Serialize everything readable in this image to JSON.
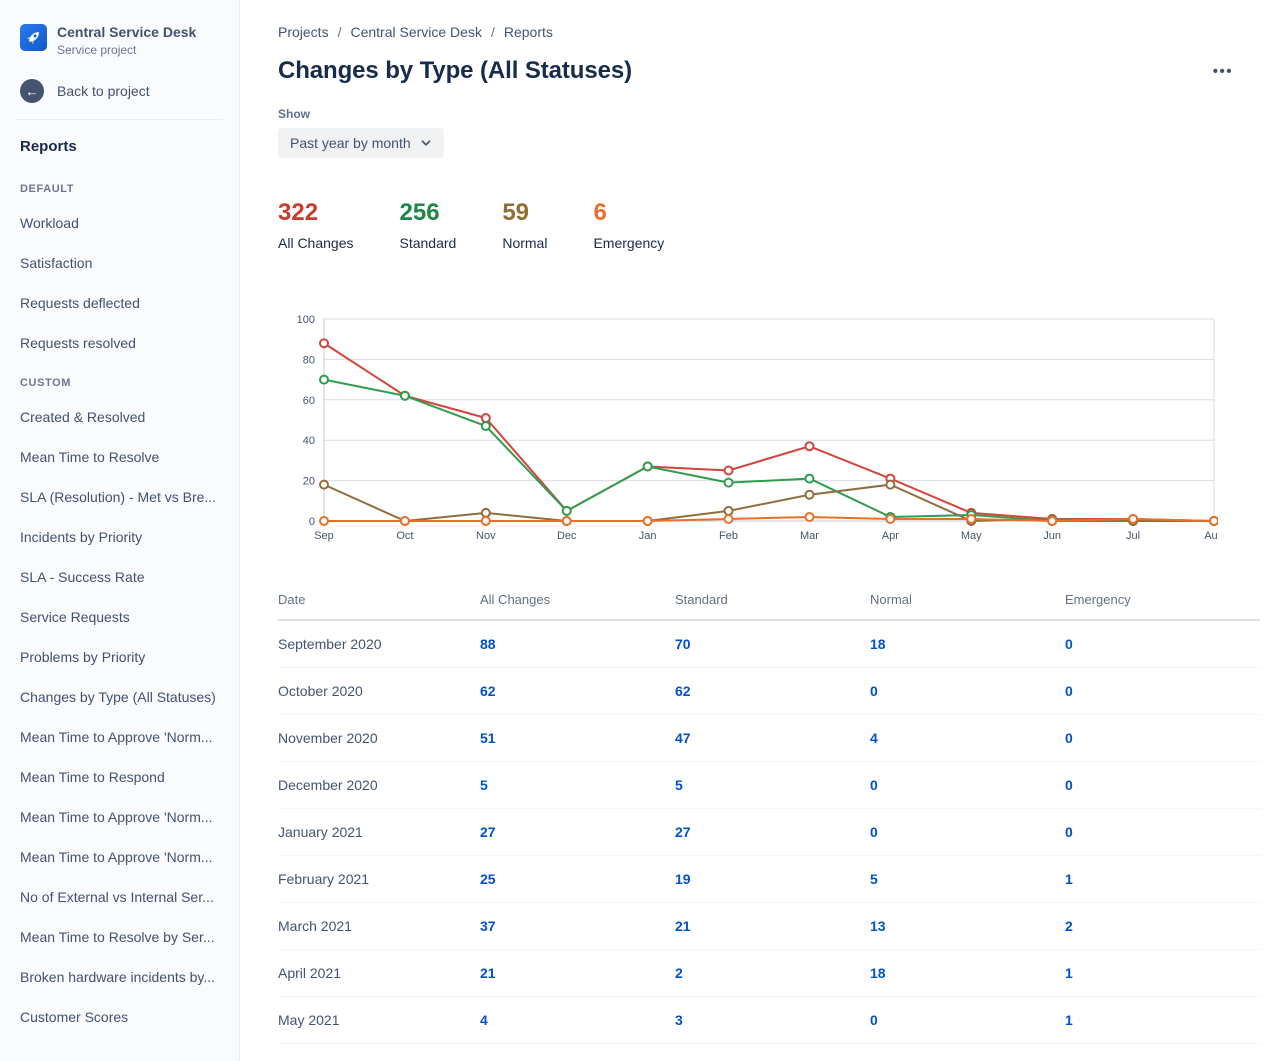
{
  "sidebar": {
    "project": {
      "name": "Central Service Desk",
      "type": "Service project"
    },
    "back_label": "Back to project",
    "reports_label": "Reports",
    "sections": [
      {
        "label": "DEFAULT",
        "items": [
          "Workload",
          "Satisfaction",
          "Requests deflected",
          "Requests resolved"
        ]
      },
      {
        "label": "CUSTOM",
        "items": [
          "Created & Resolved",
          "Mean Time to Resolve",
          "SLA (Resolution) - Met vs Bre...",
          "Incidents by Priority",
          "SLA - Success Rate",
          "Service Requests",
          "Problems by Priority",
          "Changes by Type (All Statuses)",
          "Mean Time to Approve 'Norm...",
          "Mean Time to Respond",
          "Mean Time to Approve 'Norm...",
          "Mean Time to Approve 'Norm...",
          "No of External vs Internal Ser...",
          "Mean Time to Resolve by Ser...",
          "Broken hardware incidents by...",
          "Customer Scores"
        ]
      }
    ]
  },
  "breadcrumb": [
    "Projects",
    "Central Service Desk",
    "Reports"
  ],
  "page": {
    "title": "Changes by Type (All Statuses)",
    "more_label": "•••"
  },
  "filter": {
    "label": "Show",
    "value": "Past year by month"
  },
  "stats": [
    {
      "value": "322",
      "label": "All Changes",
      "color": "#ca3b2b"
    },
    {
      "value": "256",
      "label": "Standard",
      "color": "#1e8746"
    },
    {
      "value": "59",
      "label": "Normal",
      "color": "#8d6e34"
    },
    {
      "value": "6",
      "label": "Emergency",
      "color": "#e8702a"
    }
  ],
  "chart_data": {
    "type": "line",
    "x": [
      "Sep",
      "Oct",
      "Nov",
      "Dec",
      "Jan",
      "Feb",
      "Mar",
      "Apr",
      "May",
      "Jun",
      "Jul",
      "Aug"
    ],
    "series": [
      {
        "name": "All Changes",
        "color": "#d5443c",
        "values": [
          88,
          62,
          51,
          5,
          27,
          25,
          37,
          21,
          4,
          1,
          1,
          0
        ]
      },
      {
        "name": "Standard",
        "color": "#2f9e4c",
        "values": [
          70,
          62,
          47,
          5,
          27,
          19,
          21,
          2,
          3,
          0,
          0,
          0
        ]
      },
      {
        "name": "Normal",
        "color": "#8d6e3c",
        "values": [
          18,
          0,
          4,
          0,
          0,
          5,
          13,
          18,
          0,
          1,
          0,
          0
        ]
      },
      {
        "name": "Emergency",
        "color": "#e8702a",
        "values": [
          0,
          0,
          0,
          0,
          0,
          1,
          2,
          1,
          1,
          0,
          1,
          0
        ]
      }
    ],
    "ylim": [
      0,
      100
    ],
    "yticks": [
      0,
      20,
      40,
      60,
      80,
      100
    ],
    "grid": true,
    "legend": "none",
    "title": "Changes by Type (All Statuses)"
  },
  "table": {
    "headers": [
      "Date",
      "All Changes",
      "Standard",
      "Normal",
      "Emergency"
    ],
    "rows": [
      [
        "September 2020",
        "88",
        "70",
        "18",
        "0"
      ],
      [
        "October 2020",
        "62",
        "62",
        "0",
        "0"
      ],
      [
        "November 2020",
        "51",
        "47",
        "4",
        "0"
      ],
      [
        "December 2020",
        "5",
        "5",
        "0",
        "0"
      ],
      [
        "January 2021",
        "27",
        "27",
        "0",
        "0"
      ],
      [
        "February 2021",
        "25",
        "19",
        "5",
        "1"
      ],
      [
        "March 2021",
        "37",
        "21",
        "13",
        "2"
      ],
      [
        "April 2021",
        "21",
        "2",
        "18",
        "1"
      ],
      [
        "May 2021",
        "4",
        "3",
        "0",
        "1"
      ]
    ]
  }
}
